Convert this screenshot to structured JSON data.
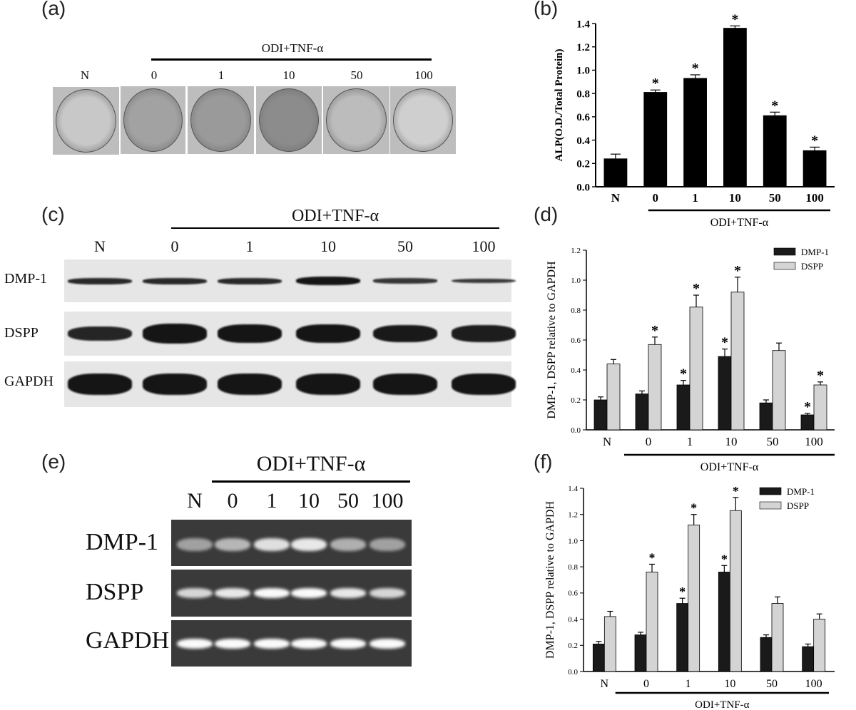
{
  "panels": {
    "a": {
      "label": "(a)",
      "group_label": "ODI+TNF-α",
      "lanes": [
        "N",
        "0",
        "1",
        "10",
        "50",
        "100"
      ]
    },
    "b": {
      "label": "(b)"
    },
    "c": {
      "label": "(c)",
      "group_label": "ODI+TNF-α",
      "lanes": [
        "N",
        "0",
        "1",
        "10",
        "50",
        "100"
      ],
      "rows": [
        "DMP-1",
        "DSPP",
        "GAPDH"
      ]
    },
    "d": {
      "label": "(d)"
    },
    "e": {
      "label": "(e)",
      "group_label": "ODI+TNF-α",
      "lanes": [
        "N",
        "0",
        "1",
        "10",
        "50",
        "100"
      ],
      "rows": [
        "DMP-1",
        "DSPP",
        "GAPDH"
      ]
    },
    "f": {
      "label": "(f)"
    }
  },
  "chart_data": [
    {
      "id": "b",
      "type": "bar",
      "categories": [
        "N",
        "0",
        "1",
        "10",
        "50",
        "100"
      ],
      "series": [
        {
          "values": [
            0.24,
            0.81,
            0.93,
            1.36,
            0.61,
            0.31
          ],
          "errors": [
            0.04,
            0.02,
            0.03,
            0.02,
            0.03,
            0.03
          ]
        }
      ],
      "significant": [
        false,
        true,
        true,
        true,
        true,
        true
      ],
      "ylabel": "ALP(O.D./Total Protein)",
      "ylim": [
        0,
        1.4
      ],
      "yticks": [
        "0.0",
        "0.2",
        "0.4",
        "0.6",
        "0.8",
        "1.0",
        "1.2",
        "1.4"
      ],
      "group_label": "ODI+TNF-α",
      "colors": [
        "#000000"
      ]
    },
    {
      "id": "d",
      "type": "bar",
      "categories": [
        "N",
        "0",
        "1",
        "10",
        "50",
        "100"
      ],
      "series": [
        {
          "name": "DMP-1",
          "values": [
            0.2,
            0.24,
            0.3,
            0.49,
            0.18,
            0.1
          ],
          "errors": [
            0.02,
            0.02,
            0.03,
            0.05,
            0.02,
            0.01
          ],
          "significant": [
            false,
            false,
            true,
            true,
            false,
            true
          ]
        },
        {
          "name": "DSPP",
          "values": [
            0.44,
            0.57,
            0.82,
            0.92,
            0.53,
            0.3
          ],
          "errors": [
            0.03,
            0.05,
            0.08,
            0.1,
            0.05,
            0.02
          ],
          "significant": [
            false,
            true,
            true,
            true,
            false,
            true
          ]
        }
      ],
      "ylabel": "DMP-1, DSPP relative to GAPDH",
      "ylim": [
        0,
        1.2
      ],
      "yticks": [
        "0.0",
        "0.2",
        "0.4",
        "0.6",
        "0.8",
        "1.0",
        "1.2"
      ],
      "group_label": "ODI+TNF-α",
      "legend": "top-right",
      "colors": [
        "#1a1a1a",
        "#d4d4d4"
      ]
    },
    {
      "id": "f",
      "type": "bar",
      "categories": [
        "N",
        "0",
        "1",
        "10",
        "50",
        "100"
      ],
      "series": [
        {
          "name": "DMP-1",
          "values": [
            0.21,
            0.28,
            0.52,
            0.76,
            0.26,
            0.19
          ],
          "errors": [
            0.02,
            0.02,
            0.04,
            0.05,
            0.02,
            0.02
          ],
          "significant": [
            false,
            false,
            true,
            true,
            false,
            false
          ]
        },
        {
          "name": "DSPP",
          "values": [
            0.42,
            0.76,
            1.12,
            1.23,
            0.52,
            0.4
          ],
          "errors": [
            0.04,
            0.06,
            0.08,
            0.1,
            0.05,
            0.04
          ],
          "significant": [
            false,
            true,
            true,
            true,
            false,
            false
          ]
        }
      ],
      "ylabel": "DMP-1, DSPP relative to GAPDH",
      "ylim": [
        0,
        1.4
      ],
      "yticks": [
        "0.0",
        "0.2",
        "0.4",
        "0.6",
        "0.8",
        "1.0",
        "1.2",
        "1.4"
      ],
      "group_label": "ODI+TNF-α",
      "legend": "top-right",
      "colors": [
        "#1a1a1a",
        "#d4d4d4"
      ]
    }
  ]
}
